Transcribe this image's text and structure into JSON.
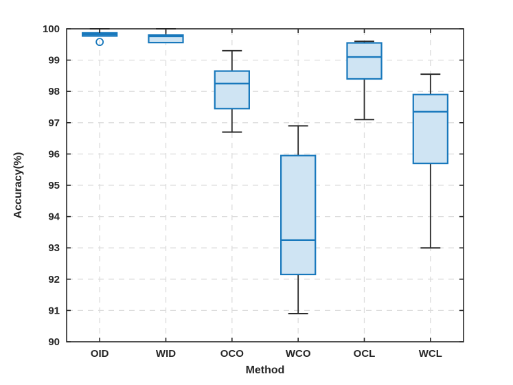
{
  "chart_data": {
    "type": "boxplot",
    "title": "",
    "xlabel": "Method",
    "ylabel": "Accuracy(%)",
    "ylim": [
      90,
      100
    ],
    "yticks": [
      90,
      91,
      92,
      93,
      94,
      95,
      96,
      97,
      98,
      99,
      100
    ],
    "grid": "dashed gridlines at every y tick and every category center",
    "legend": "none",
    "categories": [
      "OID",
      "WID",
      "OCO",
      "WCO",
      "OCL",
      "WCL"
    ],
    "series": [
      {
        "name": "OID",
        "whisker_low": 99.77,
        "q1": 99.77,
        "median": 99.82,
        "q3": 99.87,
        "whisker_high": 100.0,
        "outliers": [
          99.58
        ]
      },
      {
        "name": "WID",
        "whisker_low": 99.56,
        "q1": 99.56,
        "median": 99.76,
        "q3": 99.8,
        "whisker_high": 100.0,
        "outliers": []
      },
      {
        "name": "OCO",
        "whisker_low": 96.7,
        "q1": 97.45,
        "median": 98.25,
        "q3": 98.65,
        "whisker_high": 99.3,
        "outliers": []
      },
      {
        "name": "WCO",
        "whisker_low": 90.9,
        "q1": 92.15,
        "median": 93.25,
        "q3": 95.95,
        "whisker_high": 96.9,
        "outliers": []
      },
      {
        "name": "OCL",
        "whisker_low": 97.1,
        "q1": 98.4,
        "median": 99.1,
        "q3": 99.55,
        "whisker_high": 99.6,
        "outliers": []
      },
      {
        "name": "WCL",
        "whisker_low": 93.0,
        "q1": 95.7,
        "median": 97.35,
        "q3": 97.9,
        "whisker_high": 98.55,
        "outliers": []
      }
    ],
    "colors": {
      "box_edge": "#1878bc",
      "box_fill": "#cfe4f3",
      "median": "#1878bc",
      "whisker": "#2b2b2b",
      "outlier_edge": "#1878bc",
      "frame": "#262626",
      "grid": "#dcdcdc",
      "text": "#262626",
      "background": "#ffffff"
    }
  }
}
